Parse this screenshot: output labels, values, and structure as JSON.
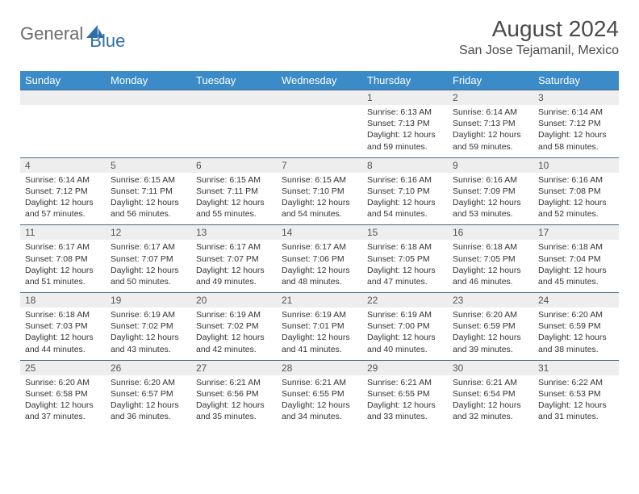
{
  "logo": {
    "part1": "General",
    "part2": "Blue"
  },
  "title": "August 2024",
  "location": "San Jose Tejamanil, Mexico",
  "colors": {
    "header_bg": "#3b8bc9",
    "header_text": "#ffffff",
    "daynum_bg": "#eeeeee",
    "divider": "#4a6a8a",
    "logo_gray": "#6b6b6b",
    "logo_blue": "#2f6fa8",
    "text": "#333333"
  },
  "day_headers": [
    "Sunday",
    "Monday",
    "Tuesday",
    "Wednesday",
    "Thursday",
    "Friday",
    "Saturday"
  ],
  "weeks": [
    [
      {
        "num": "",
        "sunrise": "",
        "sunset": "",
        "daylight": ""
      },
      {
        "num": "",
        "sunrise": "",
        "sunset": "",
        "daylight": ""
      },
      {
        "num": "",
        "sunrise": "",
        "sunset": "",
        "daylight": ""
      },
      {
        "num": "",
        "sunrise": "",
        "sunset": "",
        "daylight": ""
      },
      {
        "num": "1",
        "sunrise": "Sunrise: 6:13 AM",
        "sunset": "Sunset: 7:13 PM",
        "daylight": "Daylight: 12 hours and 59 minutes."
      },
      {
        "num": "2",
        "sunrise": "Sunrise: 6:14 AM",
        "sunset": "Sunset: 7:13 PM",
        "daylight": "Daylight: 12 hours and 59 minutes."
      },
      {
        "num": "3",
        "sunrise": "Sunrise: 6:14 AM",
        "sunset": "Sunset: 7:12 PM",
        "daylight": "Daylight: 12 hours and 58 minutes."
      }
    ],
    [
      {
        "num": "4",
        "sunrise": "Sunrise: 6:14 AM",
        "sunset": "Sunset: 7:12 PM",
        "daylight": "Daylight: 12 hours and 57 minutes."
      },
      {
        "num": "5",
        "sunrise": "Sunrise: 6:15 AM",
        "sunset": "Sunset: 7:11 PM",
        "daylight": "Daylight: 12 hours and 56 minutes."
      },
      {
        "num": "6",
        "sunrise": "Sunrise: 6:15 AM",
        "sunset": "Sunset: 7:11 PM",
        "daylight": "Daylight: 12 hours and 55 minutes."
      },
      {
        "num": "7",
        "sunrise": "Sunrise: 6:15 AM",
        "sunset": "Sunset: 7:10 PM",
        "daylight": "Daylight: 12 hours and 54 minutes."
      },
      {
        "num": "8",
        "sunrise": "Sunrise: 6:16 AM",
        "sunset": "Sunset: 7:10 PM",
        "daylight": "Daylight: 12 hours and 54 minutes."
      },
      {
        "num": "9",
        "sunrise": "Sunrise: 6:16 AM",
        "sunset": "Sunset: 7:09 PM",
        "daylight": "Daylight: 12 hours and 53 minutes."
      },
      {
        "num": "10",
        "sunrise": "Sunrise: 6:16 AM",
        "sunset": "Sunset: 7:08 PM",
        "daylight": "Daylight: 12 hours and 52 minutes."
      }
    ],
    [
      {
        "num": "11",
        "sunrise": "Sunrise: 6:17 AM",
        "sunset": "Sunset: 7:08 PM",
        "daylight": "Daylight: 12 hours and 51 minutes."
      },
      {
        "num": "12",
        "sunrise": "Sunrise: 6:17 AM",
        "sunset": "Sunset: 7:07 PM",
        "daylight": "Daylight: 12 hours and 50 minutes."
      },
      {
        "num": "13",
        "sunrise": "Sunrise: 6:17 AM",
        "sunset": "Sunset: 7:07 PM",
        "daylight": "Daylight: 12 hours and 49 minutes."
      },
      {
        "num": "14",
        "sunrise": "Sunrise: 6:17 AM",
        "sunset": "Sunset: 7:06 PM",
        "daylight": "Daylight: 12 hours and 48 minutes."
      },
      {
        "num": "15",
        "sunrise": "Sunrise: 6:18 AM",
        "sunset": "Sunset: 7:05 PM",
        "daylight": "Daylight: 12 hours and 47 minutes."
      },
      {
        "num": "16",
        "sunrise": "Sunrise: 6:18 AM",
        "sunset": "Sunset: 7:05 PM",
        "daylight": "Daylight: 12 hours and 46 minutes."
      },
      {
        "num": "17",
        "sunrise": "Sunrise: 6:18 AM",
        "sunset": "Sunset: 7:04 PM",
        "daylight": "Daylight: 12 hours and 45 minutes."
      }
    ],
    [
      {
        "num": "18",
        "sunrise": "Sunrise: 6:18 AM",
        "sunset": "Sunset: 7:03 PM",
        "daylight": "Daylight: 12 hours and 44 minutes."
      },
      {
        "num": "19",
        "sunrise": "Sunrise: 6:19 AM",
        "sunset": "Sunset: 7:02 PM",
        "daylight": "Daylight: 12 hours and 43 minutes."
      },
      {
        "num": "20",
        "sunrise": "Sunrise: 6:19 AM",
        "sunset": "Sunset: 7:02 PM",
        "daylight": "Daylight: 12 hours and 42 minutes."
      },
      {
        "num": "21",
        "sunrise": "Sunrise: 6:19 AM",
        "sunset": "Sunset: 7:01 PM",
        "daylight": "Daylight: 12 hours and 41 minutes."
      },
      {
        "num": "22",
        "sunrise": "Sunrise: 6:19 AM",
        "sunset": "Sunset: 7:00 PM",
        "daylight": "Daylight: 12 hours and 40 minutes."
      },
      {
        "num": "23",
        "sunrise": "Sunrise: 6:20 AM",
        "sunset": "Sunset: 6:59 PM",
        "daylight": "Daylight: 12 hours and 39 minutes."
      },
      {
        "num": "24",
        "sunrise": "Sunrise: 6:20 AM",
        "sunset": "Sunset: 6:59 PM",
        "daylight": "Daylight: 12 hours and 38 minutes."
      }
    ],
    [
      {
        "num": "25",
        "sunrise": "Sunrise: 6:20 AM",
        "sunset": "Sunset: 6:58 PM",
        "daylight": "Daylight: 12 hours and 37 minutes."
      },
      {
        "num": "26",
        "sunrise": "Sunrise: 6:20 AM",
        "sunset": "Sunset: 6:57 PM",
        "daylight": "Daylight: 12 hours and 36 minutes."
      },
      {
        "num": "27",
        "sunrise": "Sunrise: 6:21 AM",
        "sunset": "Sunset: 6:56 PM",
        "daylight": "Daylight: 12 hours and 35 minutes."
      },
      {
        "num": "28",
        "sunrise": "Sunrise: 6:21 AM",
        "sunset": "Sunset: 6:55 PM",
        "daylight": "Daylight: 12 hours and 34 minutes."
      },
      {
        "num": "29",
        "sunrise": "Sunrise: 6:21 AM",
        "sunset": "Sunset: 6:55 PM",
        "daylight": "Daylight: 12 hours and 33 minutes."
      },
      {
        "num": "30",
        "sunrise": "Sunrise: 6:21 AM",
        "sunset": "Sunset: 6:54 PM",
        "daylight": "Daylight: 12 hours and 32 minutes."
      },
      {
        "num": "31",
        "sunrise": "Sunrise: 6:22 AM",
        "sunset": "Sunset: 6:53 PM",
        "daylight": "Daylight: 12 hours and 31 minutes."
      }
    ]
  ]
}
